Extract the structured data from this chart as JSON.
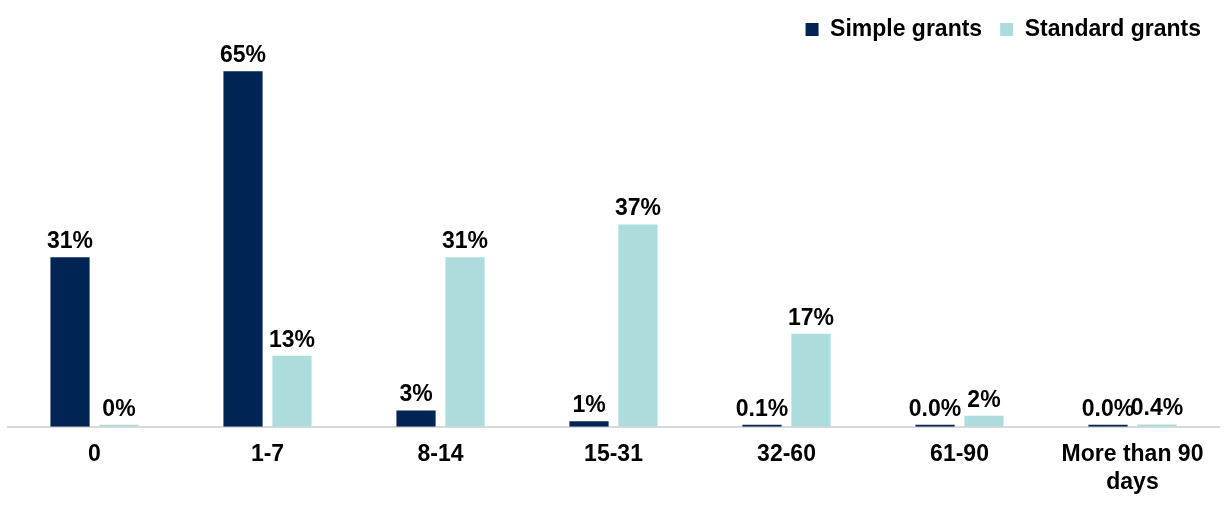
{
  "chart_data": {
    "type": "bar",
    "categories": [
      "0",
      "1-7",
      "8-14",
      "15-31",
      "32-60",
      "61-90",
      "More than 90 days"
    ],
    "series": [
      {
        "name": "Simple grants",
        "color": "#002454",
        "values": [
          31,
          65,
          3,
          1,
          0.1,
          0.0,
          0.0
        ],
        "value_labels": [
          "31%",
          "65%",
          "3%",
          "1%",
          "0.1%",
          "0.0%",
          "0.0%"
        ]
      },
      {
        "name": "Standard grants",
        "color": "#addcdc",
        "values": [
          0,
          13,
          31,
          37,
          17,
          2,
          0.4
        ],
        "value_labels": [
          "0%",
          "13%",
          "31%",
          "37%",
          "17%",
          "2%",
          "0.4%"
        ]
      }
    ],
    "legend": "top right",
    "grid": false
  }
}
